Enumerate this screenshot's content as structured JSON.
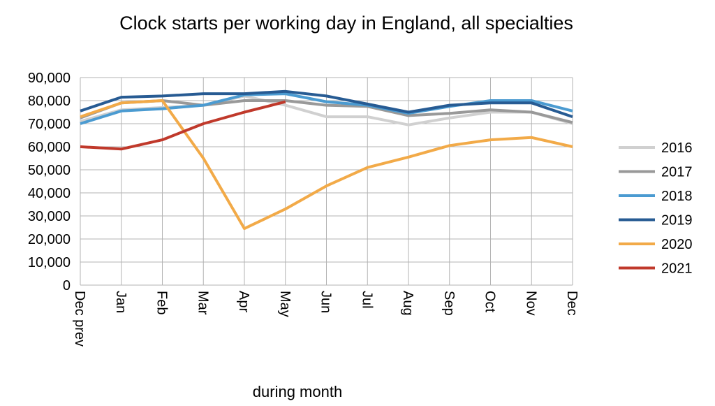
{
  "chart_data": {
    "type": "line",
    "title": "Clock starts per working day in England, all specialties",
    "xlabel": "during  month",
    "ylabel": "",
    "ylim": [
      0,
      90000
    ],
    "yticks": [
      "0",
      "10,000",
      "20,000",
      "30,000",
      "40,000",
      "50,000",
      "60,000",
      "70,000",
      "80,000",
      "90,000"
    ],
    "categories": [
      "Dec prev",
      "Jan",
      "Feb",
      "Mar",
      "Apr",
      "May",
      "Jun",
      "Jul",
      "Aug",
      "Sep",
      "Oct",
      "Nov",
      "Dec"
    ],
    "grid": true,
    "legend_position": "right",
    "series": [
      {
        "name": "2016",
        "color": "#d0d0d0",
        "values": [
          71000,
          76000,
          77000,
          78000,
          82000,
          78000,
          73000,
          73000,
          69500,
          72500,
          75000,
          75000,
          70000
        ]
      },
      {
        "name": "2017",
        "color": "#999999",
        "values": [
          72500,
          79000,
          80000,
          78000,
          80000,
          80000,
          78000,
          77500,
          73500,
          74500,
          76000,
          75000,
          70500
        ]
      },
      {
        "name": "2018",
        "color": "#4b9bd1",
        "values": [
          70000,
          75500,
          76500,
          78000,
          82500,
          83000,
          79500,
          78000,
          74500,
          77500,
          80000,
          80000,
          75500
        ]
      },
      {
        "name": "2019",
        "color": "#275b93",
        "values": [
          75500,
          81500,
          82000,
          83000,
          83000,
          84000,
          82000,
          78500,
          75000,
          78000,
          79000,
          79000,
          73000
        ]
      },
      {
        "name": "2020",
        "color": "#f2aa48",
        "values": [
          73000,
          79000,
          80000,
          55000,
          24500,
          33000,
          43000,
          51000,
          55500,
          60500,
          63000,
          64000,
          60000
        ]
      },
      {
        "name": "2021",
        "color": "#c0392b",
        "values": [
          60000,
          59000,
          63000,
          70000,
          75000,
          79500,
          null,
          null,
          null,
          null,
          null,
          null,
          null
        ]
      }
    ]
  }
}
